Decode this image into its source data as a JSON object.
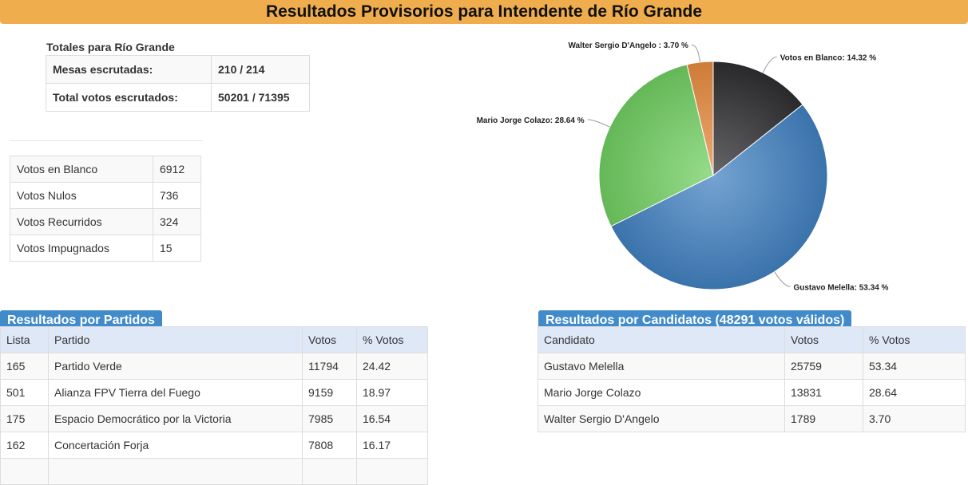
{
  "header": {
    "title": "Resultados Provisorios para Intendente de Río Grande"
  },
  "totals": {
    "title": "Totales para Río Grande",
    "rows": [
      {
        "label": "Mesas escrutadas:",
        "value": "210 / 214"
      },
      {
        "label": "Total votos escrutados:",
        "value": "50201 / 71395"
      }
    ]
  },
  "votes": [
    {
      "label": "Votos en Blanco",
      "value": "6912"
    },
    {
      "label": "Votos Nulos",
      "value": "736"
    },
    {
      "label": "Votos Recurridos",
      "value": "324"
    },
    {
      "label": "Votos Impugnados",
      "value": "15"
    }
  ],
  "parties": {
    "title": "Resultados por Partidos",
    "headers": [
      "Lista",
      "Partido",
      "Votos",
      "% Votos"
    ],
    "rows": [
      [
        "165",
        "Partido Verde",
        "11794",
        "24.42"
      ],
      [
        "501",
        "Alianza FPV Tierra del Fuego",
        "9159",
        "18.97"
      ],
      [
        "175",
        "Espacio Democrático por la Victoria",
        "7985",
        "16.54"
      ],
      [
        "162",
        "Concertación Forja",
        "7808",
        "16.17"
      ],
      [
        "",
        "",
        "",
        ""
      ]
    ]
  },
  "candidates": {
    "title": "Resultados por Candidatos (48291 votos válidos)",
    "headers": [
      "Candidato",
      "Votos",
      "% Votos"
    ],
    "rows": [
      [
        "Gustavo Melella",
        "25759",
        "53.34"
      ],
      [
        "Mario Jorge Colazo",
        "13831",
        "28.64"
      ],
      [
        "Walter Sergio D'Angelo",
        "1789",
        "3.70"
      ]
    ]
  },
  "chart_data": {
    "type": "pie",
    "title": "",
    "categories": [
      "Votos en Blanco",
      "Gustavo Melella",
      "Mario Jorge Colazo",
      "Walter Sergio D'Angelo"
    ],
    "values": [
      14.32,
      53.34,
      28.64,
      3.7
    ],
    "labels": [
      "Votos en Blanco: 14.32 %",
      "Gustavo Melella: 53.34 %",
      "Mario Jorge Colazo: 28.64 %",
      "Walter Sergio D'Angelo : 3.70 %"
    ],
    "colors": [
      "#2b2b2e",
      "#3f7fc0",
      "#6fcf5f",
      "#e8893c"
    ],
    "start_angle_deg": 0,
    "legend": "none"
  }
}
